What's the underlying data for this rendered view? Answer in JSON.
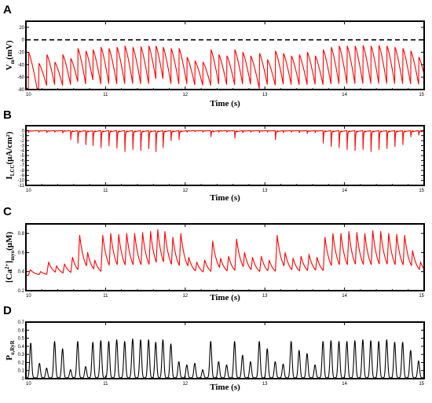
{
  "chart_data": [
    {
      "panel": "A",
      "type": "line",
      "xlabel": "Time (s)",
      "ylabel_main": "V",
      "ylabel_sub": "m",
      "ylabel_unit": "(mV)",
      "xlim": [
        10,
        15
      ],
      "ylim": [
        -80,
        30
      ],
      "xticks": [
        "10",
        "11",
        "12",
        "13",
        "14",
        "15"
      ],
      "yticks": [
        {
          "v": 20,
          "t": "20"
        },
        {
          "v": 0,
          "t": "0"
        },
        {
          "v": -20,
          "t": "-20"
        },
        {
          "v": -40,
          "t": "-40"
        },
        {
          "v": -60,
          "t": "-60"
        },
        {
          "v": -80,
          "t": "-80"
        }
      ],
      "reference_line": {
        "y": 0,
        "style": "dashed"
      },
      "color": "#ff0000",
      "waveform": "ap",
      "base": -78,
      "events": [
        [
          10.03,
          -20
        ],
        [
          10.16,
          -38
        ],
        [
          10.26,
          -24
        ],
        [
          10.36,
          -36
        ],
        [
          10.46,
          -24
        ],
        [
          10.56,
          -30
        ],
        [
          10.65,
          -14
        ],
        [
          10.75,
          -18
        ],
        [
          10.84,
          -16
        ],
        [
          10.94,
          -12
        ],
        [
          11.04,
          -14
        ],
        [
          11.14,
          -12
        ],
        [
          11.24,
          -10
        ],
        [
          11.34,
          -12
        ],
        [
          11.44,
          -11
        ],
        [
          11.54,
          -10
        ],
        [
          11.63,
          -10
        ],
        [
          11.72,
          -12
        ],
        [
          11.82,
          -14
        ],
        [
          11.92,
          -14
        ],
        [
          12.02,
          -28
        ],
        [
          12.12,
          -34
        ],
        [
          12.22,
          -36
        ],
        [
          12.32,
          -16
        ],
        [
          12.42,
          -24
        ],
        [
          12.52,
          -26
        ],
        [
          12.62,
          -16
        ],
        [
          12.72,
          -20
        ],
        [
          12.82,
          -26
        ],
        [
          12.93,
          -22
        ],
        [
          13.03,
          -32
        ],
        [
          13.13,
          -18
        ],
        [
          13.23,
          -22
        ],
        [
          13.33,
          -26
        ],
        [
          13.43,
          -24
        ],
        [
          13.53,
          -20
        ],
        [
          13.63,
          -26
        ],
        [
          13.73,
          -16
        ],
        [
          13.83,
          -12
        ],
        [
          13.93,
          -10
        ],
        [
          14.03,
          -10
        ],
        [
          14.13,
          -10
        ],
        [
          14.23,
          -9
        ],
        [
          14.33,
          -10
        ],
        [
          14.43,
          -9
        ],
        [
          14.53,
          -10
        ],
        [
          14.63,
          -12
        ],
        [
          14.73,
          -14
        ],
        [
          14.83,
          -18
        ],
        [
          14.93,
          -28
        ]
      ]
    },
    {
      "panel": "B",
      "type": "line",
      "xlabel": "Time (s)",
      "ylabel_main": "I",
      "ylabel_sub": "LCC",
      "ylabel_unit": "(μA/cm²)",
      "xlim": [
        10,
        15
      ],
      "ylim": [
        -11,
        1
      ],
      "xticks": [
        "10",
        "11",
        "12",
        "13",
        "14",
        "15"
      ],
      "yticks": [
        {
          "v": 0,
          "t": "0"
        },
        {
          "v": -1,
          "t": "-1"
        },
        {
          "v": -2,
          "t": "-2"
        },
        {
          "v": -3,
          "t": "-3"
        },
        {
          "v": -4,
          "t": "-4"
        },
        {
          "v": -5,
          "t": "-5"
        },
        {
          "v": -6,
          "t": "-6"
        },
        {
          "v": -7,
          "t": "-7"
        },
        {
          "v": -8,
          "t": "-8"
        },
        {
          "v": -9,
          "t": "-9"
        },
        {
          "v": -10,
          "t": "-10"
        },
        {
          "v": -11,
          "t": "-11"
        }
      ],
      "color": "#ff0000",
      "waveform": "current",
      "base": 0,
      "events": [
        [
          10.03,
          -0.4
        ],
        [
          10.16,
          -0.3
        ],
        [
          10.26,
          -0.4
        ],
        [
          10.36,
          -0.3
        ],
        [
          10.46,
          -0.5
        ],
        [
          10.56,
          -1.8
        ],
        [
          10.65,
          -2.5
        ],
        [
          10.75,
          -2.8
        ],
        [
          10.84,
          -3.0
        ],
        [
          10.94,
          -3.4
        ],
        [
          11.04,
          -3.0
        ],
        [
          11.14,
          -3.5
        ],
        [
          11.24,
          -4.2
        ],
        [
          11.34,
          -3.8
        ],
        [
          11.44,
          -4.0
        ],
        [
          11.54,
          -3.6
        ],
        [
          11.63,
          -4.2
        ],
        [
          11.72,
          -3.4
        ],
        [
          11.82,
          -2.0
        ],
        [
          11.92,
          -1.8
        ],
        [
          12.02,
          -0.3
        ],
        [
          12.12,
          -0.2
        ],
        [
          12.22,
          -0.3
        ],
        [
          12.32,
          -1.2
        ],
        [
          12.42,
          -0.3
        ],
        [
          12.52,
          -0.3
        ],
        [
          12.62,
          -1.5
        ],
        [
          12.72,
          -0.4
        ],
        [
          12.82,
          -0.3
        ],
        [
          12.93,
          -0.4
        ],
        [
          13.03,
          -0.3
        ],
        [
          13.13,
          -1.8
        ],
        [
          13.23,
          -0.4
        ],
        [
          13.33,
          -0.3
        ],
        [
          13.43,
          -0.4
        ],
        [
          13.53,
          -0.6
        ],
        [
          13.63,
          -0.4
        ],
        [
          13.73,
          -2.5
        ],
        [
          13.83,
          -3.2
        ],
        [
          13.93,
          -3.4
        ],
        [
          14.03,
          -3.8
        ],
        [
          14.13,
          -4.0
        ],
        [
          14.23,
          -3.8
        ],
        [
          14.33,
          -4.2
        ],
        [
          14.43,
          -3.8
        ],
        [
          14.53,
          -3.6
        ],
        [
          14.63,
          -3.2
        ],
        [
          14.73,
          -2.8
        ],
        [
          14.83,
          -1.2
        ],
        [
          14.93,
          -0.9
        ]
      ]
    },
    {
      "panel": "C",
      "type": "line",
      "xlabel": "Time (s)",
      "ylabel_main": "[Ca",
      "ylabel_sup": "2+",
      "ylabel_after": "]",
      "ylabel_sub": "myo",
      "ylabel_unit": "(μM)",
      "xlim": [
        10,
        15
      ],
      "ylim": [
        0.2,
        0.9
      ],
      "xticks": [
        "10",
        "11",
        "12",
        "13",
        "14",
        "15"
      ],
      "yticks": [
        {
          "v": 0.8,
          "t": "0.8"
        },
        {
          "v": 0.6,
          "t": "0.6"
        },
        {
          "v": 0.4,
          "t": "0.4"
        },
        {
          "v": 0.2,
          "t": "0.2"
        }
      ],
      "color": "#ff0000",
      "waveform": "calcium",
      "base": 0.36,
      "events": [
        [
          10.03,
          0.42
        ],
        [
          10.16,
          0.4
        ],
        [
          10.26,
          0.5
        ],
        [
          10.36,
          0.46
        ],
        [
          10.46,
          0.48
        ],
        [
          10.56,
          0.55
        ],
        [
          10.65,
          0.78
        ],
        [
          10.75,
          0.6
        ],
        [
          10.84,
          0.52
        ],
        [
          10.94,
          0.78
        ],
        [
          11.04,
          0.8
        ],
        [
          11.14,
          0.79
        ],
        [
          11.24,
          0.8
        ],
        [
          11.34,
          0.8
        ],
        [
          11.44,
          0.81
        ],
        [
          11.54,
          0.82
        ],
        [
          11.63,
          0.84
        ],
        [
          11.72,
          0.82
        ],
        [
          11.82,
          0.76
        ],
        [
          11.92,
          0.8
        ],
        [
          12.02,
          0.55
        ],
        [
          12.12,
          0.5
        ],
        [
          12.22,
          0.52
        ],
        [
          12.32,
          0.72
        ],
        [
          12.42,
          0.54
        ],
        [
          12.52,
          0.56
        ],
        [
          12.62,
          0.74
        ],
        [
          12.72,
          0.6
        ],
        [
          12.82,
          0.55
        ],
        [
          12.93,
          0.56
        ],
        [
          13.03,
          0.52
        ],
        [
          13.13,
          0.78
        ],
        [
          13.23,
          0.6
        ],
        [
          13.33,
          0.54
        ],
        [
          13.43,
          0.56
        ],
        [
          13.53,
          0.58
        ],
        [
          13.63,
          0.55
        ],
        [
          13.73,
          0.76
        ],
        [
          13.83,
          0.8
        ],
        [
          13.93,
          0.8
        ],
        [
          14.03,
          0.82
        ],
        [
          14.13,
          0.81
        ],
        [
          14.23,
          0.8
        ],
        [
          14.33,
          0.83
        ],
        [
          14.43,
          0.82
        ],
        [
          14.53,
          0.8
        ],
        [
          14.63,
          0.79
        ],
        [
          14.73,
          0.78
        ],
        [
          14.83,
          0.62
        ],
        [
          14.93,
          0.5
        ]
      ]
    },
    {
      "panel": "D",
      "type": "line",
      "xlabel": "Time (s)",
      "ylabel_main": "P",
      "ylabel_sub": "o,RyR",
      "ylabel_unit": "",
      "xlim": [
        10,
        15
      ],
      "ylim": [
        0,
        0.7
      ],
      "xticks": [
        "10",
        "11",
        "12",
        "13",
        "14",
        "15"
      ],
      "yticks": [
        {
          "v": 0.7,
          "t": "0.7"
        },
        {
          "v": 0.6,
          "t": "0.6"
        },
        {
          "v": 0.5,
          "t": "0.5"
        },
        {
          "v": 0.4,
          "t": "0.4"
        },
        {
          "v": 0.3,
          "t": "0.3"
        },
        {
          "v": 0.2,
          "t": "0.2"
        },
        {
          "v": 0.1,
          "t": "0.1"
        },
        {
          "v": 0,
          "t": "0"
        }
      ],
      "color": "#000000",
      "waveform": "ryr",
      "base": 0.01,
      "events": [
        [
          10.06,
          0.43
        ],
        [
          10.17,
          0.18
        ],
        [
          10.26,
          0.12
        ],
        [
          10.36,
          0.45
        ],
        [
          10.46,
          0.36
        ],
        [
          10.56,
          0.1
        ],
        [
          10.65,
          0.45
        ],
        [
          10.75,
          0.14
        ],
        [
          10.84,
          0.44
        ],
        [
          10.94,
          0.46
        ],
        [
          11.04,
          0.45
        ],
        [
          11.14,
          0.47
        ],
        [
          11.24,
          0.45
        ],
        [
          11.34,
          0.48
        ],
        [
          11.44,
          0.47
        ],
        [
          11.54,
          0.47
        ],
        [
          11.63,
          0.44
        ],
        [
          11.72,
          0.47
        ],
        [
          11.82,
          0.42
        ],
        [
          11.92,
          0.2
        ],
        [
          12.02,
          0.16
        ],
        [
          12.12,
          0.18
        ],
        [
          12.22,
          0.1
        ],
        [
          12.32,
          0.45
        ],
        [
          12.42,
          0.2
        ],
        [
          12.52,
          0.16
        ],
        [
          12.62,
          0.45
        ],
        [
          12.72,
          0.28
        ],
        [
          12.82,
          0.2
        ],
        [
          12.93,
          0.45
        ],
        [
          13.03,
          0.36
        ],
        [
          13.13,
          0.2
        ],
        [
          13.23,
          0.17
        ],
        [
          13.33,
          0.45
        ],
        [
          13.43,
          0.34
        ],
        [
          13.53,
          0.3
        ],
        [
          13.63,
          0.16
        ],
        [
          13.73,
          0.45
        ],
        [
          13.83,
          0.46
        ],
        [
          13.93,
          0.45
        ],
        [
          14.03,
          0.45
        ],
        [
          14.13,
          0.46
        ],
        [
          14.23,
          0.47
        ],
        [
          14.33,
          0.46
        ],
        [
          14.43,
          0.45
        ],
        [
          14.53,
          0.47
        ],
        [
          14.63,
          0.44
        ],
        [
          14.73,
          0.44
        ],
        [
          14.83,
          0.34
        ],
        [
          14.93,
          0.21
        ]
      ]
    }
  ]
}
